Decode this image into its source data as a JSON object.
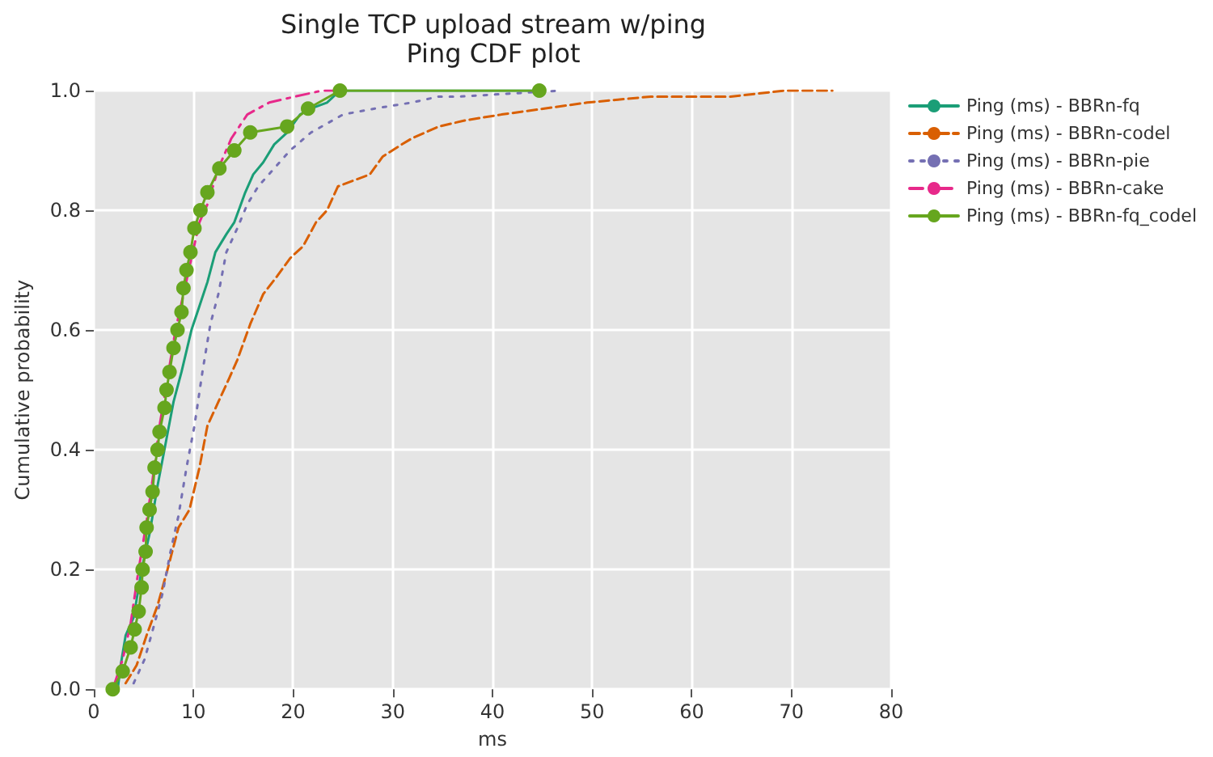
{
  "chart_data": {
    "type": "line",
    "title": "Single TCP upload stream w/ping",
    "subtitle": "Ping CDF plot",
    "xlabel": "ms",
    "ylabel": "Cumulative probability",
    "xlim": [
      0,
      80
    ],
    "xticks": [
      0,
      10,
      20,
      30,
      40,
      50,
      60,
      70,
      80
    ],
    "ylim": [
      0,
      1
    ],
    "yticks": [
      {
        "value": 0,
        "label": "0.0"
      },
      0.2,
      0.4,
      0.6,
      0.8,
      {
        "value": 1,
        "label": "1.0"
      }
    ],
    "grid": true,
    "legend": "right",
    "marker": "none",
    "series": [
      {
        "name": "Ping (ms) - BBRn-fq",
        "color": "#1b9e77",
        "line_style": "solid",
        "x": [
          2.4,
          2.7,
          3.2,
          4.0,
          4.8,
          5.6,
          6.4,
          7.2,
          8.0,
          8.8,
          9.8,
          10.6,
          11.4,
          12.2,
          13.3,
          14.1,
          15.2,
          16.0,
          17.0,
          18.1,
          19.4,
          20.7,
          21.8,
          23.4,
          24.7,
          44
        ],
        "values": [
          0.0,
          0.04,
          0.09,
          0.12,
          0.2,
          0.26,
          0.34,
          0.41,
          0.48,
          0.53,
          0.6,
          0.64,
          0.68,
          0.73,
          0.76,
          0.78,
          0.83,
          0.86,
          0.88,
          0.91,
          0.93,
          0.96,
          0.97,
          0.98,
          1.0,
          1.0
        ]
      },
      {
        "name": "Ping (ms) - BBRn-codel",
        "color": "#d95f02",
        "line_style": "dashed",
        "x": [
          3.2,
          4.3,
          5.3,
          6.4,
          7.4,
          8.5,
          9.6,
          10.6,
          11.4,
          12.5,
          13.6,
          14.4,
          15.7,
          17.0,
          18.4,
          19.7,
          21.0,
          22.3,
          23.4,
          24.5,
          26.1,
          27.7,
          29.0,
          30.9,
          31.9,
          34.6,
          37.2,
          40.9,
          45.2,
          49.5,
          55.9,
          63.9,
          69.3,
          74.1
        ],
        "values": [
          0.01,
          0.04,
          0.09,
          0.14,
          0.2,
          0.27,
          0.3,
          0.37,
          0.44,
          0.48,
          0.52,
          0.55,
          0.61,
          0.66,
          0.69,
          0.72,
          0.74,
          0.78,
          0.8,
          0.84,
          0.85,
          0.86,
          0.89,
          0.91,
          0.92,
          0.94,
          0.95,
          0.96,
          0.97,
          0.98,
          0.99,
          0.99,
          1.0,
          1.0
        ]
      },
      {
        "name": "Ping (ms) - BBRn-pie",
        "color": "#7570b3",
        "line_style": "dotted",
        "x": [
          4.0,
          5.1,
          6.1,
          6.9,
          7.7,
          8.5,
          9.3,
          10.1,
          10.9,
          11.7,
          12.5,
          13.3,
          14.4,
          15.4,
          16.5,
          18.1,
          19.7,
          21.8,
          25.0,
          28.2,
          31.9,
          34.6,
          36.7,
          46.8
        ],
        "values": [
          0.01,
          0.05,
          0.11,
          0.16,
          0.23,
          0.29,
          0.37,
          0.44,
          0.53,
          0.61,
          0.66,
          0.73,
          0.77,
          0.81,
          0.84,
          0.87,
          0.9,
          0.93,
          0.96,
          0.97,
          0.98,
          0.99,
          0.99,
          1.0
        ]
      },
      {
        "name": "Ping (ms) - BBRn-cake",
        "color": "#e7298a",
        "line_style": "dashdot",
        "x": [
          2.1,
          2.9,
          3.7,
          4.5,
          5.3,
          5.9,
          6.6,
          7.4,
          8.2,
          9.0,
          9.8,
          10.6,
          11.4,
          12.5,
          13.8,
          15.4,
          17.6,
          20.2,
          22.9,
          24.7
        ],
        "values": [
          0.01,
          0.05,
          0.11,
          0.2,
          0.28,
          0.35,
          0.44,
          0.52,
          0.6,
          0.66,
          0.72,
          0.78,
          0.81,
          0.87,
          0.92,
          0.96,
          0.98,
          0.99,
          1.0,
          1.0
        ]
      },
      {
        "name": "Ping (ms) - BBRn-fq_codel",
        "color": "#66a61e",
        "line_style": "solid",
        "marker": "circle",
        "x": [
          1.9,
          2.9,
          3.7,
          4.1,
          4.5,
          4.8,
          4.9,
          5.2,
          5.3,
          5.6,
          5.9,
          6.1,
          6.4,
          6.6,
          7.1,
          7.3,
          7.6,
          8.0,
          8.4,
          8.8,
          9.0,
          9.3,
          9.7,
          10.1,
          10.7,
          11.4,
          12.6,
          14.1,
          15.7,
          19.4,
          21.5,
          24.7,
          44.7
        ],
        "values": [
          0.0,
          0.03,
          0.07,
          0.1,
          0.13,
          0.17,
          0.2,
          0.23,
          0.27,
          0.3,
          0.33,
          0.37,
          0.4,
          0.43,
          0.47,
          0.5,
          0.53,
          0.57,
          0.6,
          0.63,
          0.67,
          0.7,
          0.73,
          0.77,
          0.8,
          0.83,
          0.87,
          0.9,
          0.93,
          0.94,
          0.97,
          1.0,
          1.0
        ]
      }
    ]
  }
}
